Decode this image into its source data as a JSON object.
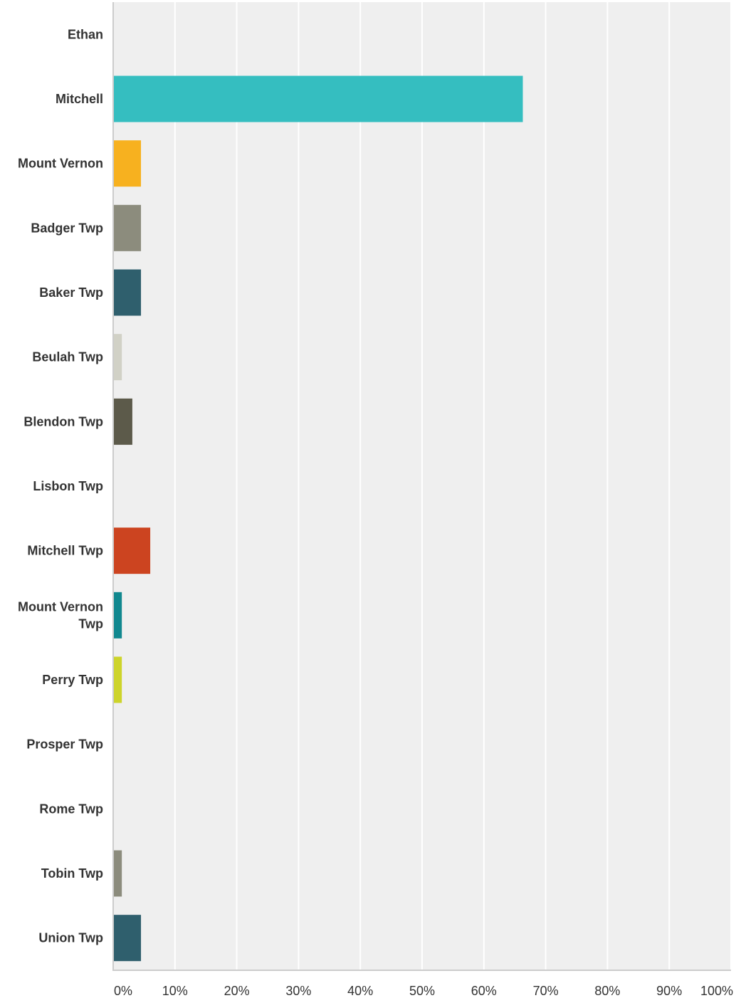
{
  "chart_data": {
    "type": "bar",
    "orientation": "horizontal",
    "categories": [
      "Ethan",
      "Mitchell",
      "Mount Vernon",
      "Badger Twp",
      "Baker Twp",
      "Beulah Twp",
      "Blendon Twp",
      "Lisbon Twp",
      "Mitchell Twp",
      "Mount Vernon Twp",
      "Perry Twp",
      "Prosper Twp",
      "Rome Twp",
      "Tobin Twp",
      "Union Twp"
    ],
    "values": [
      0,
      66.3,
      4.5,
      4.5,
      4.5,
      1.4,
      3.1,
      0,
      6.0,
      1.4,
      1.4,
      0,
      0,
      1.4,
      4.5
    ],
    "colors": [
      "#35bec0",
      "#35bec0",
      "#f7b11f",
      "#8c8c7d",
      "#2f5f6d",
      "#d1d1c6",
      "#5c5a4a",
      "#35bec0",
      "#cc4420",
      "#11888f",
      "#cdd42b",
      "#35bec0",
      "#35bec0",
      "#8c8c7d",
      "#2f5f6d"
    ],
    "x_ticks": [
      "0%",
      "10%",
      "20%",
      "30%",
      "40%",
      "50%",
      "60%",
      "70%",
      "80%",
      "90%",
      "100%"
    ],
    "xlim": [
      0,
      100
    ],
    "unit": "%",
    "title": "",
    "xlabel": "",
    "ylabel": "",
    "grid": true,
    "plot_background": "#efefef",
    "grid_color": "#ffffff",
    "axis_color": "#cccccc"
  }
}
